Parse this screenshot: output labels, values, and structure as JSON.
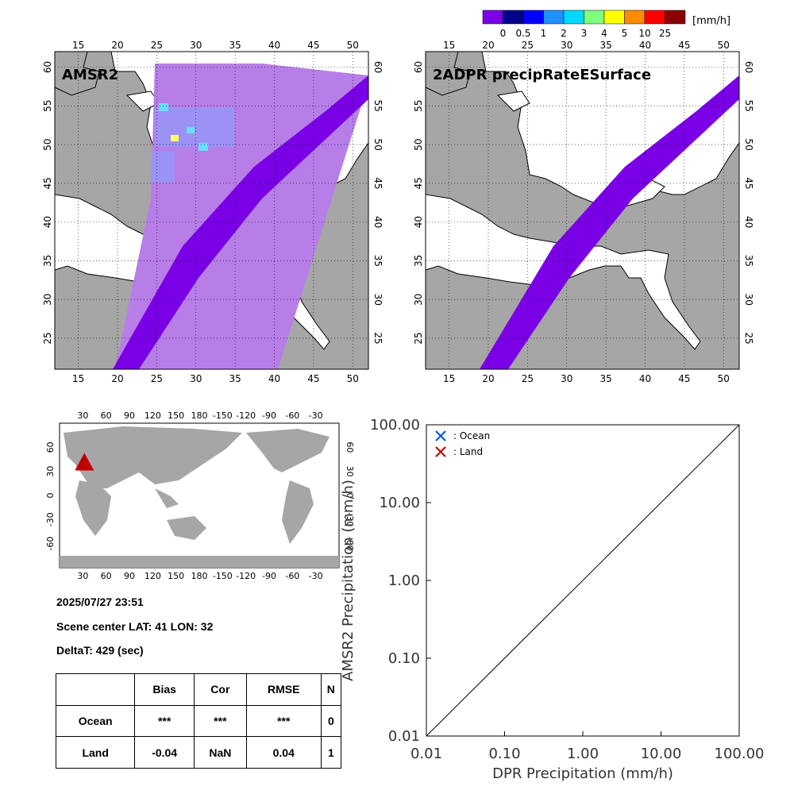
{
  "colorbar": {
    "unit": "[mm/h]",
    "colors": [
      "#7a00e6",
      "#00008b",
      "#0000ff",
      "#1e90ff",
      "#00d8ff",
      "#7fff7f",
      "#ffff00",
      "#ff8c00",
      "#ff0000",
      "#8b0000"
    ],
    "tick_labels": [
      "0",
      "0.5",
      "1",
      "2",
      "3",
      "4",
      "5",
      "10",
      "25"
    ]
  },
  "maps": {
    "lon_ticks": [
      "15",
      "20",
      "25",
      "30",
      "35",
      "40",
      "45",
      "50"
    ],
    "lat_ticks": [
      "25",
      "30",
      "35",
      "40",
      "45",
      "50",
      "55",
      "60"
    ],
    "left_title": "AMSR2",
    "right_title": "2ADPR precipRateESurface",
    "colors": {
      "land": "#a6a6a6",
      "sea": "#ffffff",
      "swath_amsr2": "#b77ee8",
      "swath_dpr": "#7a00e6"
    }
  },
  "world_map": {
    "lon_ticks": [
      "30",
      "60",
      "90",
      "120",
      "150",
      "180",
      "-150",
      "-120",
      "-90",
      "-60",
      "-30"
    ],
    "lat_ticks": [
      "60",
      "30",
      "0",
      "-30",
      "-60"
    ],
    "marker": {
      "lat": 41,
      "lon": 32,
      "color": "#c00000"
    }
  },
  "info": {
    "datetime": "2025/07/27 23:51",
    "scene_center": "Scene center LAT: 41   LON:  32",
    "deltat": "DeltaT:  429 (sec)"
  },
  "stats_table": {
    "headers": [
      "",
      "Bias",
      "Cor",
      "RMSE",
      "N"
    ],
    "rows": [
      [
        "Ocean",
        "***",
        "***",
        "***",
        "0"
      ],
      [
        "Land",
        "-0.04",
        "NaN",
        "0.04",
        "1"
      ]
    ]
  },
  "chart_data": {
    "type": "scatter",
    "xlabel": "DPR Precipitation (mm/h)",
    "ylabel": "AMSR2 Precipitation (mm/h)",
    "xscale": "log",
    "yscale": "log",
    "xlim": [
      0.01,
      100
    ],
    "ylim": [
      0.01,
      100
    ],
    "x_tick_labels": [
      "0.01",
      "0.10",
      "1.00",
      "10.00",
      "100.00"
    ],
    "y_tick_labels": [
      "0.01",
      "0.10",
      "1.00",
      "10.00",
      "100.00"
    ],
    "legend_position": "top-left",
    "series": [
      {
        "name": ": Ocean",
        "marker": "x",
        "color": "#0050e0",
        "points": []
      },
      {
        "name": ": Land",
        "marker": "x",
        "color": "#c00000",
        "points": []
      }
    ],
    "reference_line": "1:1"
  }
}
